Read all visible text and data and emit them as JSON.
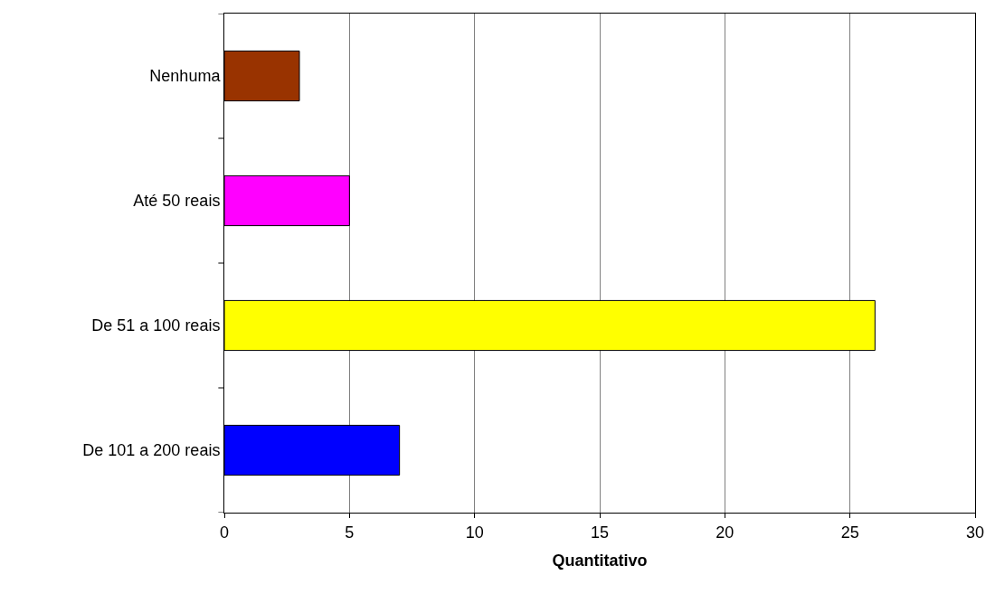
{
  "chart_data": {
    "type": "bar",
    "orientation": "horizontal",
    "xlabel": "Quantitativo",
    "categories": [
      "Nenhuma",
      "Até 50 reais",
      "De 51 a 100 reais",
      "De 101 a 200 reais"
    ],
    "values": [
      3,
      5,
      26,
      7
    ],
    "colors": [
      "#993300",
      "#ff00ff",
      "#ffff00",
      "#0000ff"
    ],
    "xlim": [
      0,
      30
    ],
    "xticks": [
      0,
      5,
      10,
      15,
      20,
      25,
      30
    ],
    "grid": "x"
  }
}
